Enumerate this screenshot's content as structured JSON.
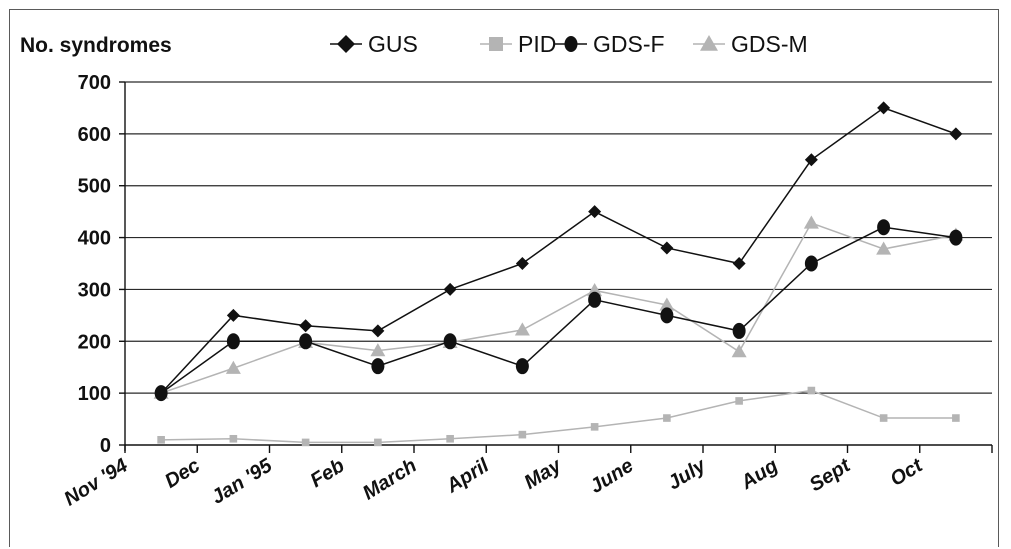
{
  "chart_data": {
    "type": "line",
    "ylabel": "No. syndromes",
    "xlabel": "",
    "title": "",
    "ylim": [
      0,
      700
    ],
    "yticks": [
      "0",
      "100",
      "200",
      "300",
      "400",
      "500",
      "600",
      "700"
    ],
    "categories": [
      "Nov '94",
      "Dec",
      "Jan '95",
      "Feb",
      "March",
      "April",
      "May",
      "June",
      "July",
      "Aug",
      "Sept",
      "Oct"
    ],
    "grid": "horizontal",
    "legend_position": "top",
    "series": [
      {
        "name": "GUS",
        "marker": "diamond",
        "color": "#111111",
        "values": [
          100,
          250,
          230,
          220,
          300,
          350,
          450,
          380,
          350,
          550,
          650,
          600
        ]
      },
      {
        "name": "PID",
        "marker": "square",
        "color": "#b4b4b4",
        "values": [
          10,
          12,
          5,
          5,
          12,
          20,
          35,
          52,
          85,
          105,
          52,
          52
        ]
      },
      {
        "name": "GDS-F",
        "marker": "circle",
        "color": "#111111",
        "values": [
          100,
          200,
          200,
          152,
          200,
          152,
          280,
          250,
          220,
          350,
          420,
          400
        ]
      },
      {
        "name": "GDS-M",
        "marker": "triangle",
        "color": "#b4b4b4",
        "values": [
          100,
          148,
          198,
          182,
          198,
          222,
          298,
          270,
          180,
          428,
          378,
          405
        ]
      }
    ]
  }
}
